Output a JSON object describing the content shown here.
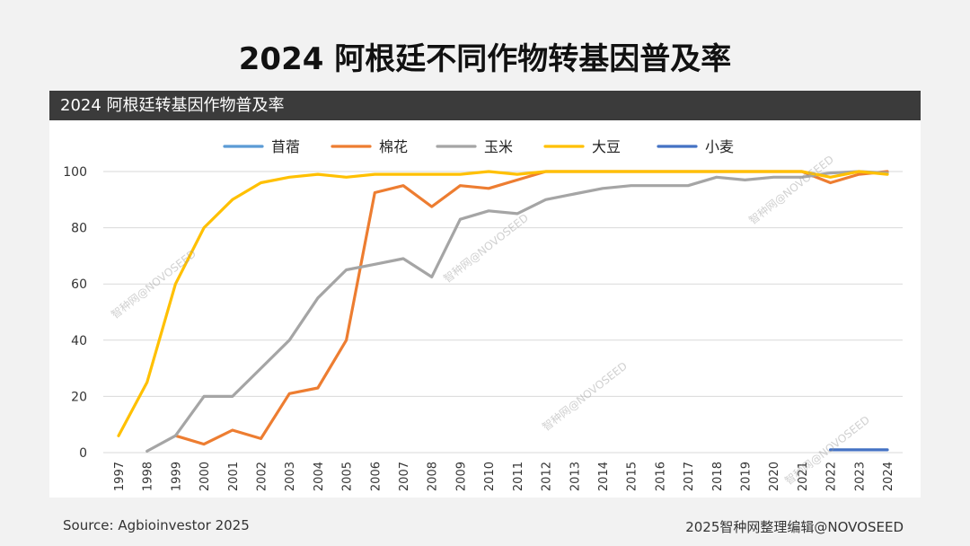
{
  "page": {
    "title": "2024 阿根廷不同作物转基因普及率",
    "source": "Source: Agbioinvestor 2025",
    "credit": "2025智种网整理编辑@NOVOSEED",
    "watermark": "智种网@NOVOSEED"
  },
  "chart_data": {
    "type": "line",
    "title": "2024 阿根廷转基因作物普及率",
    "xlabel": "",
    "ylabel": "",
    "ylim": [
      0,
      100
    ],
    "yticks": [
      0,
      20,
      40,
      60,
      80,
      100
    ],
    "grid": true,
    "legend_position": "top",
    "x": [
      "1997",
      "1998",
      "1999",
      "2000",
      "2001",
      "2002",
      "2003",
      "2004",
      "2005",
      "2006",
      "2007",
      "2008",
      "2009",
      "2010",
      "2011",
      "2012",
      "2013",
      "2014",
      "2015",
      "2016",
      "2017",
      "2018",
      "2019",
      "2020",
      "2021",
      "2022",
      "2023",
      "2024"
    ],
    "series": [
      {
        "name": "苜蓿",
        "color": "#5b9bd5",
        "values": [
          null,
          null,
          null,
          null,
          null,
          null,
          null,
          null,
          null,
          null,
          null,
          null,
          null,
          null,
          null,
          null,
          null,
          null,
          null,
          null,
          null,
          null,
          null,
          null,
          null,
          null,
          null,
          null
        ]
      },
      {
        "name": "棉花",
        "color": "#ed7d31",
        "values": [
          null,
          null,
          6,
          3,
          8,
          5,
          21,
          23,
          40,
          92.5,
          95,
          87.5,
          95,
          94,
          97,
          100,
          100,
          100,
          100,
          100,
          100,
          100,
          100,
          100,
          100,
          96,
          99,
          100
        ]
      },
      {
        "name": "玉米",
        "color": "#a5a5a5",
        "values": [
          null,
          0.5,
          6,
          20,
          20,
          30,
          40,
          55,
          65,
          67,
          69,
          62.5,
          83,
          86,
          85,
          90,
          92,
          94,
          95,
          95,
          95,
          98,
          97,
          98,
          98,
          99.5,
          100,
          99.5
        ]
      },
      {
        "name": "大豆",
        "color": "#ffc000",
        "values": [
          6,
          25,
          60,
          80,
          90,
          96,
          98,
          99,
          98,
          99,
          99,
          99,
          99,
          100,
          99,
          100,
          100,
          100,
          100,
          100,
          100,
          100,
          100,
          100,
          100,
          98,
          100,
          99
        ]
      },
      {
        "name": "小麦",
        "color": "#4472c4",
        "values": [
          null,
          null,
          null,
          null,
          null,
          null,
          null,
          null,
          null,
          null,
          null,
          null,
          null,
          null,
          null,
          null,
          null,
          null,
          null,
          null,
          null,
          null,
          null,
          null,
          null,
          1,
          1,
          1
        ]
      }
    ]
  }
}
